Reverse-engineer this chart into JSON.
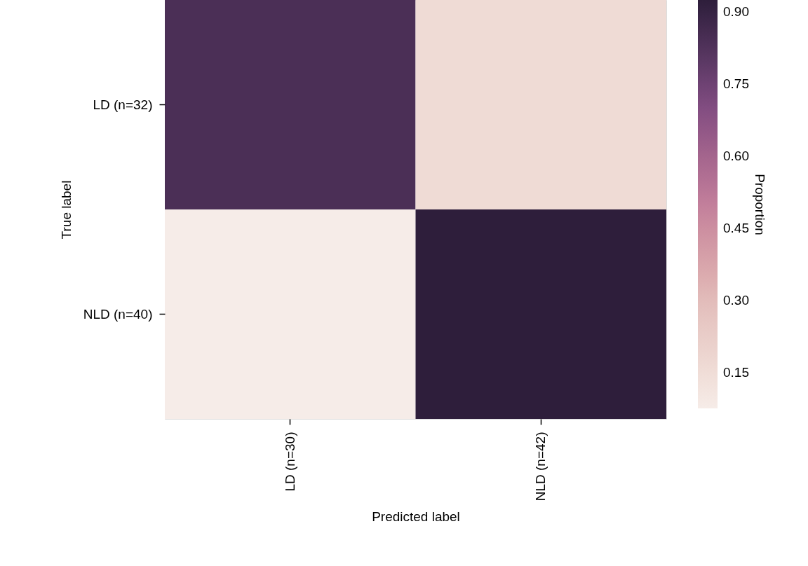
{
  "chart_data": {
    "type": "heatmap",
    "xlabel": "Predicted label",
    "ylabel": "True label",
    "clabel": "Proportion",
    "categories": [
      "LD (n=30)",
      "NLD (n=42)"
    ],
    "y_categories": [
      "LD (n=32)",
      "NLD (n=40)"
    ],
    "cells": [
      [
        0.84,
        0.16
      ],
      [
        0.075,
        0.925
      ]
    ],
    "clim": [
      0.075,
      0.925
    ],
    "cticks": [
      0.15,
      {
        "value": 0.3,
        "label": "0.30"
      },
      0.45,
      {
        "value": 0.6,
        "label": "0.60"
      },
      0.75,
      {
        "value": 0.9,
        "label": "0.90"
      }
    ],
    "colors": [
      "#f6ece8",
      "#e4c0bd",
      "#c27f9b",
      "#7e4a7f",
      "#2e1e3b"
    ]
  }
}
